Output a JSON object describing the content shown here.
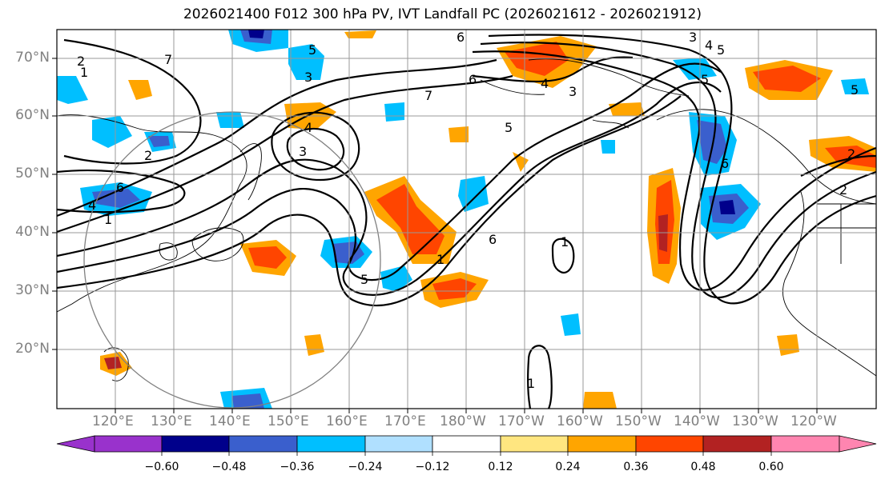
{
  "title": "2026021400 F012 300 hPa PV, IVT Landfall PC (2026021612 - 2026021912)",
  "lat_labels": [
    "70°N",
    "60°N",
    "50°N",
    "40°N",
    "30°N",
    "20°N"
  ],
  "lon_labels": [
    "120°E",
    "130°E",
    "140°E",
    "150°E",
    "160°E",
    "170°E",
    "180°W",
    "170°W",
    "160°W",
    "150°W",
    "140°W",
    "130°W",
    "120°W"
  ],
  "colorbar": {
    "labels": [
      "−0.60",
      "−0.48",
      "−0.36",
      "−0.24",
      "−0.12",
      "0.12",
      "0.24",
      "0.36",
      "0.48",
      "0.60"
    ],
    "colors": [
      "#9932cc",
      "#00008b",
      "#3a5fcd",
      "#00bfff",
      "#b0e0ff",
      "#ffffff",
      "#ffe680",
      "#ffa500",
      "#ff4500",
      "#b22222",
      "#ff85b0"
    ]
  },
  "contour_labels": [
    "6",
    "3",
    "4",
    "5",
    "2",
    "1",
    "7",
    "3",
    "5",
    "6",
    "4",
    "2",
    "1",
    "6",
    "5",
    "3",
    "4",
    "5",
    "6",
    "1",
    "1",
    "5",
    "2",
    "6",
    "7",
    "1",
    "4",
    "3",
    "2",
    "5"
  ]
}
